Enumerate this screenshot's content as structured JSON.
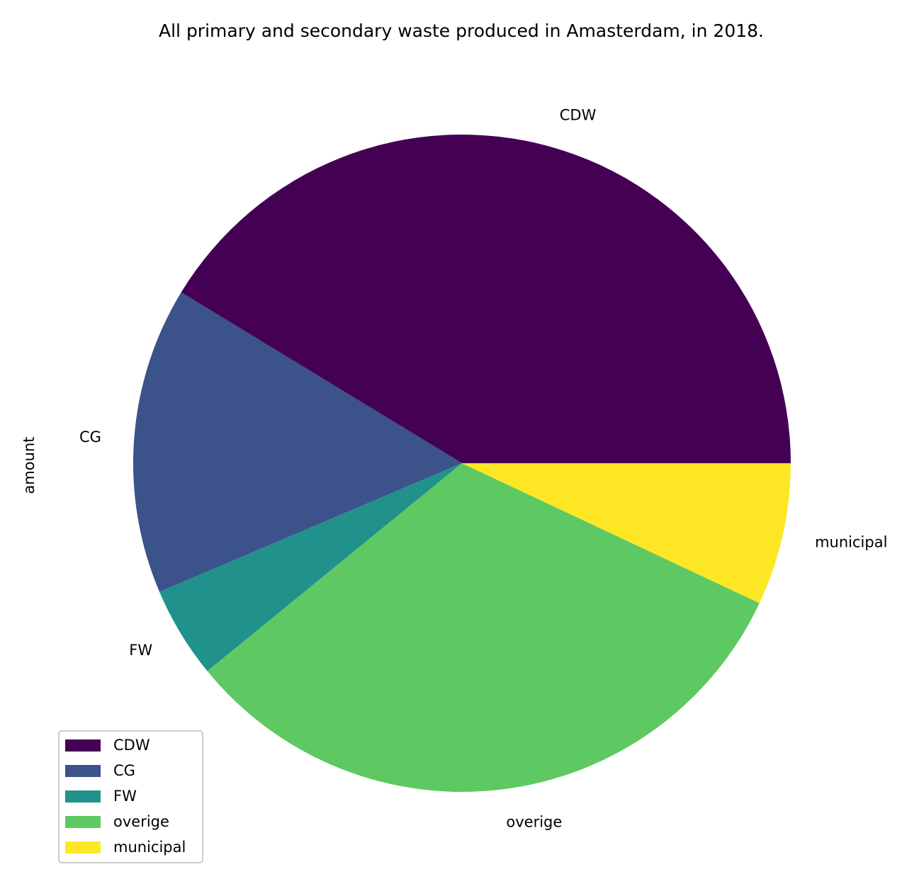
{
  "chart_data": {
    "type": "pie",
    "title": "All primary and secondary waste produced in Amasterdam, in 2018.",
    "ylabel": "amount",
    "categories": [
      "CDW",
      "CG",
      "FW",
      "overige",
      "municipal"
    ],
    "values": [
      41.3,
      15.1,
      4.5,
      32.1,
      7.0
    ],
    "colors": [
      "#440154",
      "#3b528b",
      "#21918c",
      "#5ec962",
      "#fde725"
    ],
    "start_angle_deg": 0,
    "direction": "counterclockwise",
    "legend_position": "lower-left"
  }
}
